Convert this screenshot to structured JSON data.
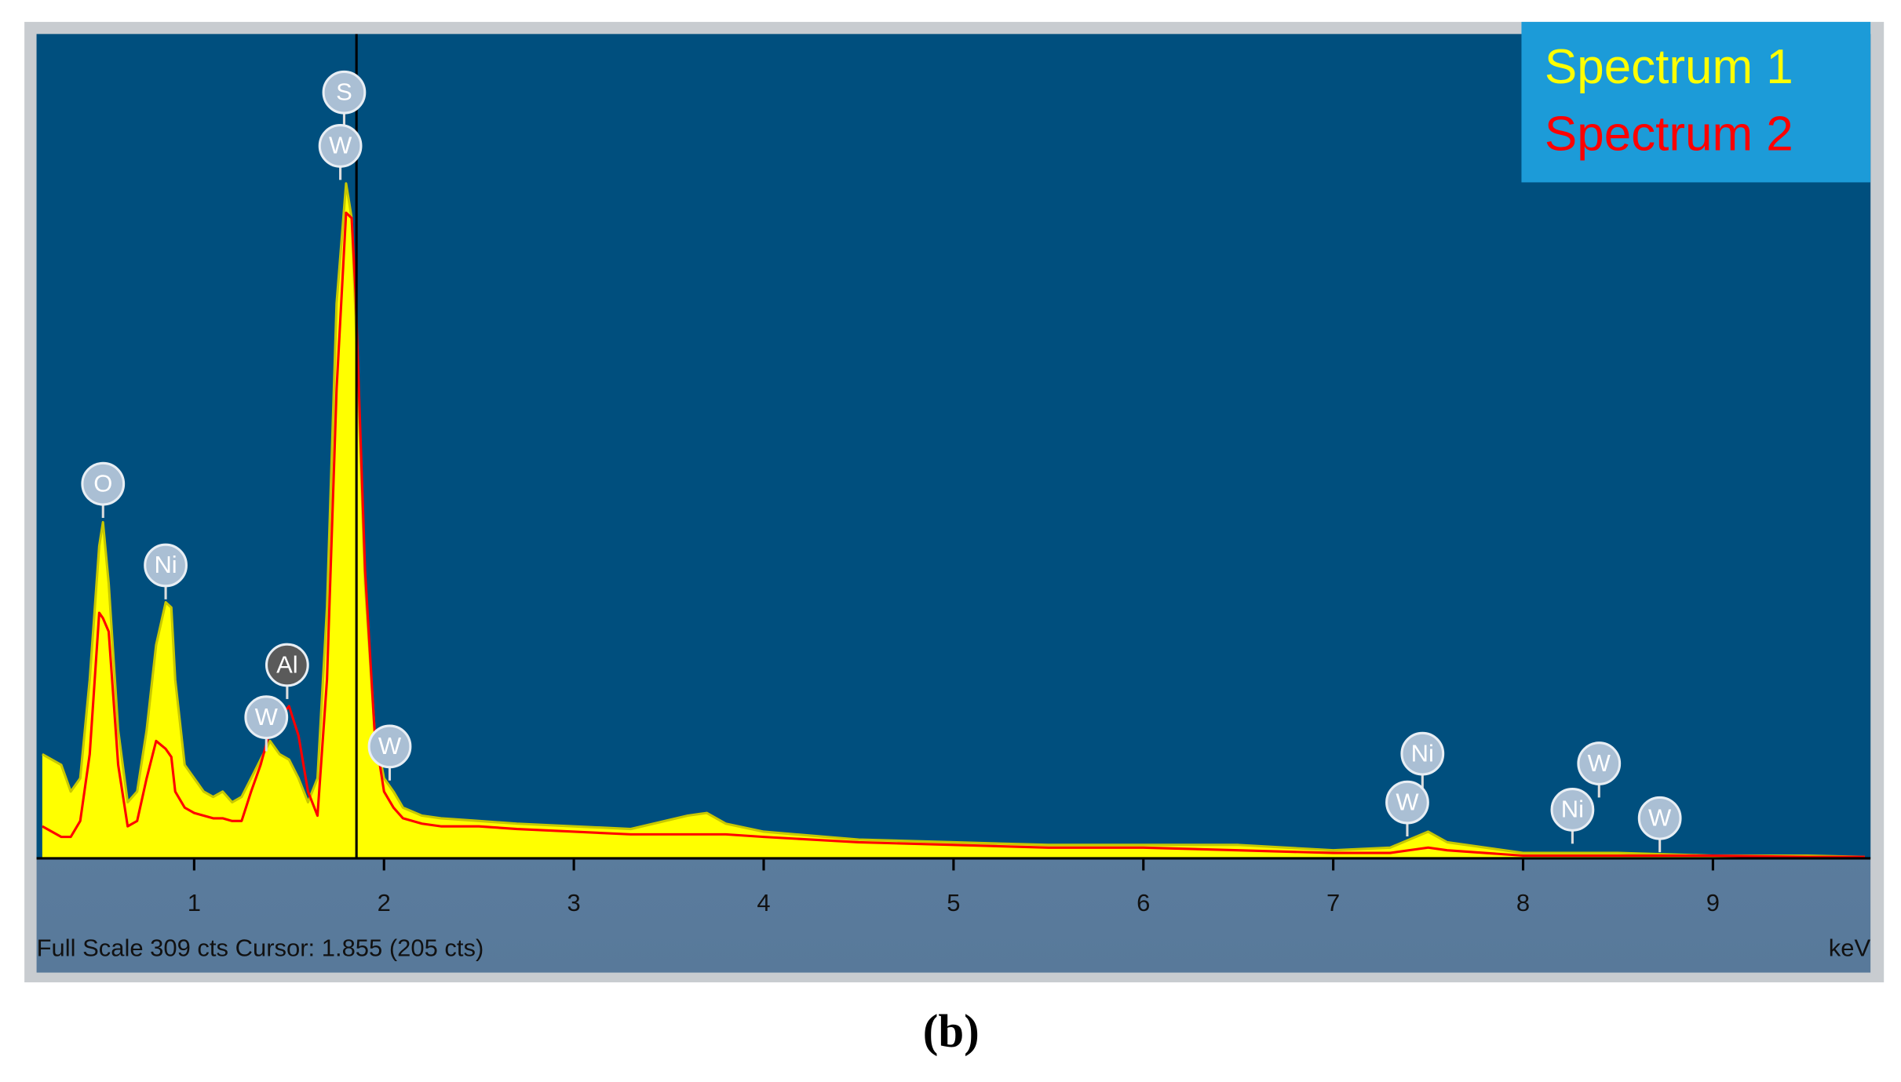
{
  "chart_data": {
    "type": "area",
    "x_label": "keV",
    "status": "Full Scale 309 cts Cursor: 1.855  (205 cts)",
    "caption": "(b)",
    "xlim": [
      0.17,
      9.83
    ],
    "ylim": [
      0,
      309
    ],
    "xticks": [
      1,
      2,
      3,
      4,
      5,
      6,
      7,
      8,
      9
    ],
    "cursor": 1.855,
    "legend": "top-right",
    "x": [
      0.2,
      0.3,
      0.35,
      0.4,
      0.45,
      0.5,
      0.52,
      0.55,
      0.6,
      0.65,
      0.7,
      0.75,
      0.8,
      0.85,
      0.88,
      0.9,
      0.95,
      1.0,
      1.05,
      1.1,
      1.15,
      1.2,
      1.25,
      1.3,
      1.35,
      1.4,
      1.45,
      1.5,
      1.55,
      1.6,
      1.65,
      1.7,
      1.75,
      1.8,
      1.83,
      1.85,
      1.9,
      1.95,
      2.0,
      2.05,
      2.1,
      2.2,
      2.3,
      2.5,
      2.7,
      3.0,
      3.3,
      3.6,
      3.7,
      3.8,
      4.0,
      4.5,
      5.0,
      5.5,
      6.0,
      6.5,
      7.0,
      7.3,
      7.5,
      7.6,
      8.0,
      8.5,
      9.0,
      9.5,
      9.8
    ],
    "series": [
      {
        "name": "Spectrum 1",
        "color": "#ffff00",
        "fill": true,
        "values": [
          39,
          35,
          25,
          30,
          67,
          117,
          126,
          103,
          48,
          21,
          25,
          48,
          80,
          96,
          94,
          67,
          35,
          30,
          25,
          23,
          25,
          21,
          23,
          30,
          37,
          44,
          39,
          37,
          30,
          21,
          30,
          94,
          208,
          253,
          240,
          203,
          103,
          48,
          30,
          25,
          19,
          16,
          15,
          14,
          13,
          12,
          11,
          16,
          17,
          13,
          10,
          7,
          6,
          5,
          5,
          5,
          3,
          4,
          10,
          6,
          2,
          2,
          1,
          1,
          0.5
        ]
      },
      {
        "name": "Spectrum 2",
        "color": "#ff0000",
        "fill": false,
        "values": [
          12,
          8,
          8,
          14,
          39,
          92,
          90,
          85,
          35,
          12,
          14,
          30,
          44,
          41,
          38,
          25,
          19,
          17,
          16,
          15,
          15,
          14,
          14,
          25,
          35,
          48,
          53,
          57,
          46,
          25,
          16,
          67,
          176,
          242,
          240,
          212,
          108,
          48,
          25,
          19,
          15,
          13,
          12,
          12,
          11,
          10,
          9,
          9,
          9,
          9,
          8,
          6,
          5,
          4,
          4,
          3,
          2,
          2,
          4,
          3,
          1,
          1,
          1,
          0.5,
          0.5
        ]
      }
    ],
    "markers": [
      {
        "label": "O",
        "x": 0.52
      },
      {
        "label": "Ni",
        "x": 0.85
      },
      {
        "label": "Al",
        "x": 1.49
      },
      {
        "label": "W",
        "x": 1.38
      },
      {
        "label": "S",
        "x": 1.79
      },
      {
        "label": "W",
        "x": 1.77
      },
      {
        "label": "W",
        "x": 2.03
      },
      {
        "label": "Ni",
        "x": 7.47
      },
      {
        "label": "W",
        "x": 7.39
      },
      {
        "label": "W",
        "x": 8.4
      },
      {
        "label": "Ni",
        "x": 8.26
      },
      {
        "label": "W",
        "x": 8.72
      }
    ]
  }
}
